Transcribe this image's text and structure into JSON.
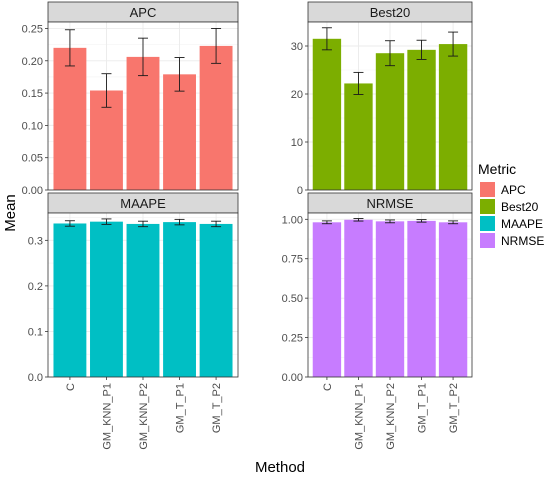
{
  "chart_data": {
    "type": "bar",
    "facet_layout": "2x2 grid, free y scales",
    "xlabel": "Method",
    "ylabel": "Mean",
    "categories": [
      "C",
      "GM_KNN_P1",
      "GM_KNN_P2",
      "GM_T_P1",
      "GM_T_P2"
    ],
    "legend": {
      "title": "Metric",
      "placement": "right",
      "entries": [
        {
          "label": "APC",
          "color": "#F8766D"
        },
        {
          "label": "Best20",
          "color": "#7CAE00"
        },
        {
          "label": "MAAPE",
          "color": "#00BFC4"
        },
        {
          "label": "NRMSE",
          "color": "#C77CFF"
        }
      ]
    },
    "grid": true,
    "panels": [
      {
        "name": "APC",
        "color": "#F8766D",
        "values": [
          0.22,
          0.154,
          0.206,
          0.179,
          0.223
        ],
        "errors": [
          0.028,
          0.026,
          0.029,
          0.026,
          0.027
        ],
        "ylim": [
          0,
          0.26
        ],
        "yticks": [
          "0.00",
          "0.05",
          "0.10",
          "0.15",
          "0.20",
          "0.25"
        ]
      },
      {
        "name": "Best20",
        "color": "#7CAE00",
        "values": [
          31.5,
          22.2,
          28.5,
          29.2,
          30.4
        ],
        "errors": [
          2.3,
          2.3,
          2.6,
          2.0,
          2.5
        ],
        "ylim": [
          0,
          35
        ],
        "yticks": [
          "0",
          "10",
          "20",
          "30"
        ]
      },
      {
        "name": "MAAPE",
        "color": "#00BFC4",
        "values": [
          0.337,
          0.341,
          0.336,
          0.34,
          0.336
        ],
        "errors": [
          0.006,
          0.006,
          0.006,
          0.006,
          0.006
        ],
        "ylim": [
          0,
          0.36
        ],
        "yticks": [
          "0.0",
          "0.1",
          "0.2",
          "0.3"
        ]
      },
      {
        "name": "NRMSE",
        "color": "#C77CFF",
        "values": [
          0.981,
          0.997,
          0.987,
          0.99,
          0.981
        ],
        "errors": [
          0.009,
          0.008,
          0.009,
          0.008,
          0.009
        ],
        "ylim": [
          0,
          1.04
        ],
        "yticks": [
          "0.00",
          "0.25",
          "0.50",
          "0.75",
          "1.00"
        ]
      }
    ]
  }
}
